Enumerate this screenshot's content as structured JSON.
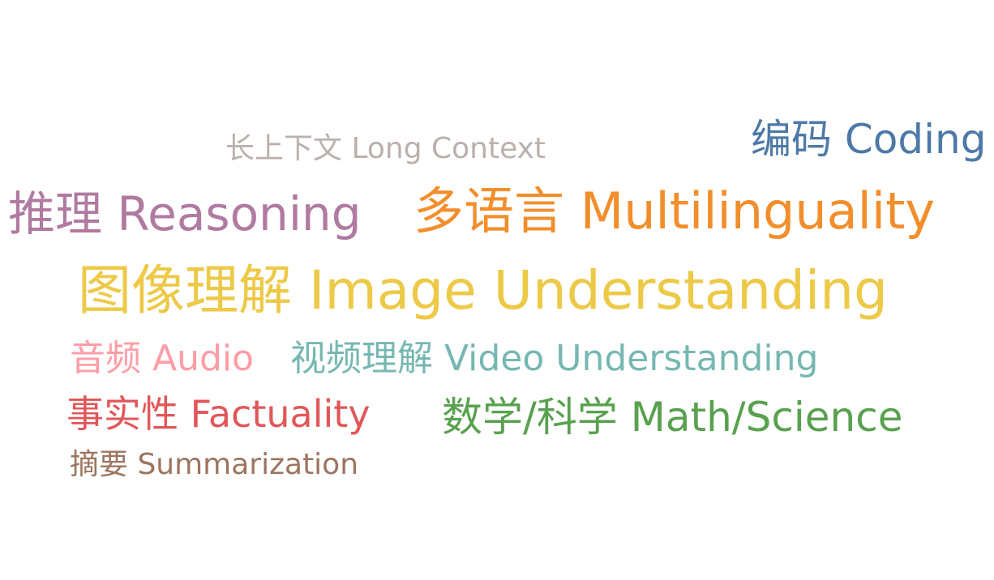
{
  "word_cloud": {
    "words": [
      {
        "id": "long-context",
        "text": "长上下文 Long Context",
        "color": "#bab0ac"
      },
      {
        "id": "coding",
        "text": "编码 Coding",
        "color": "#4e79a7"
      },
      {
        "id": "reasoning",
        "text": "推理 Reasoning",
        "color": "#b07aa1"
      },
      {
        "id": "multilinguality",
        "text": "多语言 Multilinguality",
        "color": "#f28e2b"
      },
      {
        "id": "image-understanding",
        "text": "图像理解 Image Understanding",
        "color": "#edc948"
      },
      {
        "id": "audio",
        "text": "音频 Audio",
        "color": "#ff9da7"
      },
      {
        "id": "video-understanding",
        "text": "视频理解 Video Understanding",
        "color": "#76b7b2"
      },
      {
        "id": "factuality",
        "text": "事实性 Factuality",
        "color": "#e15759"
      },
      {
        "id": "math-science",
        "text": "数学/科学 Math/Science",
        "color": "#59a14f"
      },
      {
        "id": "summarization",
        "text": "摘要 Summarization",
        "color": "#9c755f"
      }
    ]
  }
}
